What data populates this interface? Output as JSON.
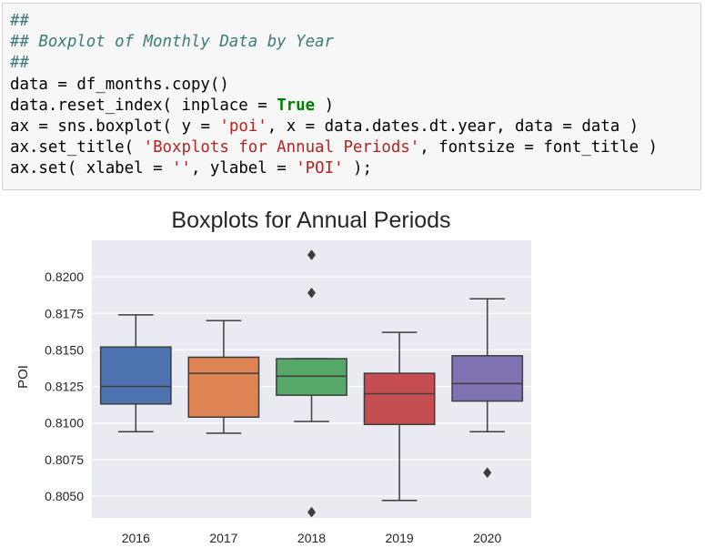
{
  "code_cell": {
    "lines": [
      [
        {
          "t": "##",
          "k": "comment"
        }
      ],
      [
        {
          "t": "## Boxplot of Monthly Data by Year",
          "k": "comment"
        }
      ],
      [
        {
          "t": "##",
          "k": "comment"
        }
      ],
      [
        {
          "t": "data ",
          "k": "plain"
        },
        {
          "t": "=",
          "k": "op"
        },
        {
          "t": " df_months.copy()",
          "k": "plain"
        }
      ],
      [
        {
          "t": "data.reset_index( inplace ",
          "k": "plain"
        },
        {
          "t": "=",
          "k": "op"
        },
        {
          "t": " ",
          "k": "plain"
        },
        {
          "t": "True",
          "k": "kw"
        },
        {
          "t": " )",
          "k": "plain"
        }
      ],
      [
        {
          "t": "ax ",
          "k": "plain"
        },
        {
          "t": "=",
          "k": "op"
        },
        {
          "t": " sns.boxplot( y ",
          "k": "plain"
        },
        {
          "t": "=",
          "k": "op"
        },
        {
          "t": " ",
          "k": "plain"
        },
        {
          "t": "'poi'",
          "k": "string"
        },
        {
          "t": ", x ",
          "k": "plain"
        },
        {
          "t": "=",
          "k": "op"
        },
        {
          "t": " data.dates.dt.year, data ",
          "k": "plain"
        },
        {
          "t": "=",
          "k": "op"
        },
        {
          "t": " data )",
          "k": "plain"
        }
      ],
      [
        {
          "t": "ax.set_title( ",
          "k": "plain"
        },
        {
          "t": "'Boxplots for Annual Periods'",
          "k": "string"
        },
        {
          "t": ", fontsize ",
          "k": "plain"
        },
        {
          "t": "=",
          "k": "op"
        },
        {
          "t": " font_title )",
          "k": "plain"
        }
      ],
      [
        {
          "t": "ax.set( xlabel ",
          "k": "plain"
        },
        {
          "t": "=",
          "k": "op"
        },
        {
          "t": " ",
          "k": "plain"
        },
        {
          "t": "''",
          "k": "string"
        },
        {
          "t": ", ylabel ",
          "k": "plain"
        },
        {
          "t": "=",
          "k": "op"
        },
        {
          "t": " ",
          "k": "plain"
        },
        {
          "t": "'POI'",
          "k": "string"
        },
        {
          "t": " );",
          "k": "plain"
        }
      ]
    ]
  },
  "chart_data": {
    "type": "boxplot",
    "title": "Boxplots for Annual Periods",
    "xlabel": "",
    "ylabel": "POI",
    "ylim": [
      0.8035,
      0.8225
    ],
    "yticks": [
      0.805,
      0.8075,
      0.81,
      0.8125,
      0.815,
      0.8175,
      0.82
    ],
    "ytick_labels": [
      "0.8050",
      "0.8075",
      "0.8100",
      "0.8125",
      "0.8150",
      "0.8175",
      "0.8200"
    ],
    "grid": true,
    "background": "#eaeaf2",
    "grid_color": "#ffffff",
    "categories": [
      "2016",
      "2017",
      "2018",
      "2019",
      "2020"
    ],
    "boxes": [
      {
        "label": "2016",
        "whisker_low": 0.8094,
        "q1": 0.8113,
        "median": 0.8125,
        "q3": 0.8152,
        "whisker_high": 0.8174,
        "outliers": [],
        "color": "#4c72b0"
      },
      {
        "label": "2017",
        "whisker_low": 0.8093,
        "q1": 0.8104,
        "median": 0.8134,
        "q3": 0.8145,
        "whisker_high": 0.817,
        "outliers": [],
        "color": "#dd8452"
      },
      {
        "label": "2018",
        "whisker_low": 0.8101,
        "q1": 0.8119,
        "median": 0.8132,
        "q3": 0.8144,
        "whisker_high": 0.8144,
        "outliers": [
          0.8215,
          0.8189,
          0.8039
        ],
        "color": "#55a868"
      },
      {
        "label": "2019",
        "whisker_low": 0.8047,
        "q1": 0.8099,
        "median": 0.812,
        "q3": 0.8134,
        "whisker_high": 0.8162,
        "outliers": [],
        "color": "#c44e52"
      },
      {
        "label": "2020",
        "whisker_low": 0.8094,
        "q1": 0.8115,
        "median": 0.8127,
        "q3": 0.8146,
        "whisker_high": 0.8185,
        "outliers": [
          0.8066
        ],
        "color": "#8172b3"
      }
    ]
  }
}
